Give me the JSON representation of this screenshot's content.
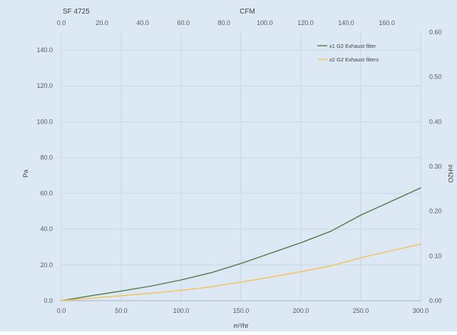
{
  "chart_data": {
    "type": "line",
    "title": "SF 4725",
    "xlabel": "m³/hr",
    "ylabel": "Pa",
    "x_top_label": "CFM",
    "y_right_label": "inH2O",
    "xlim": [
      0,
      300
    ],
    "ylim": [
      0,
      150
    ],
    "x_ticks": [
      "0.0",
      "50.0",
      "100.0",
      "150.0",
      "200.0",
      "250.0",
      "300.0"
    ],
    "y_ticks": [
      "0.0",
      "20.0",
      "40.0",
      "60.0",
      "80.0",
      "100.0",
      "120.0",
      "140.0"
    ],
    "x_top_range": [
      0,
      176.6
    ],
    "x_top_ticks": [
      "0.0",
      "20.0",
      "40.0",
      "60.0",
      "80.0",
      "100.0",
      "120.0",
      "140.0",
      "160.0"
    ],
    "y_right_range": [
      0,
      0.6
    ],
    "y_right_ticks": [
      "0.00",
      "0.10",
      "0.20",
      "0.30",
      "0.40",
      "0.50",
      "0.60"
    ],
    "grid": true,
    "legend_position": "top-right",
    "background_color": "#dce9f5",
    "series": [
      {
        "name": "x1 G2 Exhaust filter",
        "color": "#5b7f4e",
        "x": [
          0,
          25,
          50,
          75,
          100,
          125,
          150,
          175,
          200,
          225,
          250,
          275,
          300
        ],
        "y": [
          0,
          2.8,
          5.4,
          8.2,
          11.6,
          15.6,
          20.8,
          26.6,
          32.4,
          38.8,
          47.8,
          55.4,
          63.0
        ]
      },
      {
        "name": "x2 G2 Exhaust filters",
        "color": "#f4c35a",
        "x": [
          0,
          25,
          50,
          75,
          100,
          125,
          150,
          175,
          200,
          225,
          250,
          275,
          300
        ],
        "y": [
          0,
          1.4,
          2.8,
          4.2,
          5.8,
          7.8,
          10.4,
          13.2,
          16.2,
          19.4,
          24.0,
          27.8,
          31.6
        ]
      }
    ]
  }
}
